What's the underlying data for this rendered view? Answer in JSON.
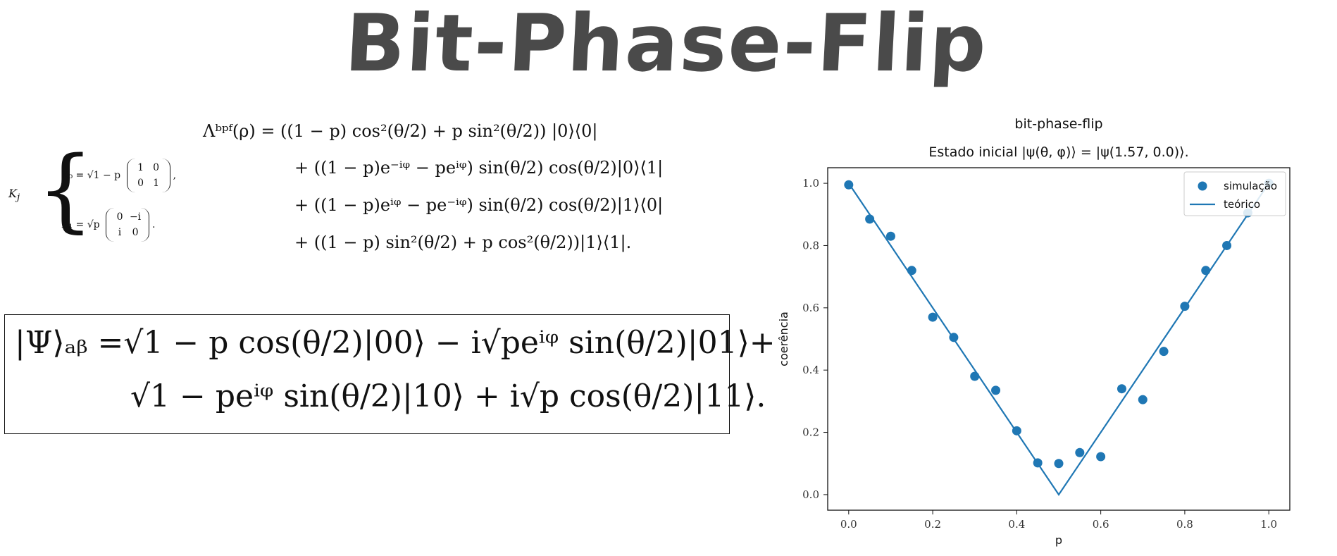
{
  "header": {
    "title": "Bit-Phase-Flip"
  },
  "kraus": {
    "label": "K",
    "sub": "j",
    "k0_lhs": "K₀ = √1 − p",
    "k0_matrix": [
      [
        "1",
        "0"
      ],
      [
        "0",
        "1"
      ]
    ],
    "k0_tail": ",",
    "k1_lhs": "K₁ = √p",
    "k1_matrix": [
      [
        "0",
        "−i"
      ],
      [
        "i",
        "0"
      ]
    ],
    "k1_tail": "."
  },
  "channel": {
    "line1": "Λᵇᵖᶠ(ρ) = ((1 − p) cos²(θ/2) + p sin²(θ/2)) |0⟩⟨0|",
    "line2": "+ ((1 − p)e⁻ⁱᵠ − peⁱᵠ) sin(θ/2) cos(θ/2)|0⟩⟨1|",
    "line3": "+ ((1 − p)eⁱᵠ − pe⁻ⁱᵠ) sin(θ/2) cos(θ/2)|1⟩⟨0|",
    "line4": "+ ((1 − p) sin²(θ/2) + p cos²(θ/2))|1⟩⟨1|."
  },
  "state": {
    "line1": "|Ψ⟩ₐᵦ =√1 − p cos(θ/2)|00⟩ − i√peⁱᵠ sin(θ/2)|01⟩+",
    "line2": "√1 − peⁱᵠ sin(θ/2)|10⟩ + i√p cos(θ/2)|11⟩."
  },
  "chart_data": {
    "type": "scatter",
    "title": "bit-phase-flip",
    "subtitle": "Estado inicial |ψ(θ, φ)⟩ = |ψ(1.57, 0.0)⟩.",
    "xlabel": "p",
    "ylabel": "coerência",
    "xlim": [
      -0.05,
      1.05
    ],
    "ylim": [
      -0.05,
      1.05
    ],
    "xticks": [
      "0.0",
      "0.2",
      "0.4",
      "0.6",
      "0.8",
      "1.0"
    ],
    "yticks": [
      "0.0",
      "0.2",
      "0.4",
      "0.6",
      "0.8",
      "1.0"
    ],
    "grid": false,
    "legend": "top-right",
    "color": "#1f77b4",
    "series": [
      {
        "name": "simulação",
        "kind": "scatter",
        "x": [
          0.0,
          0.05,
          0.1,
          0.15,
          0.2,
          0.25,
          0.3,
          0.35,
          0.4,
          0.45,
          0.5,
          0.55,
          0.6,
          0.65,
          0.7,
          0.75,
          0.8,
          0.85,
          0.9,
          0.95,
          1.0
        ],
        "y": [
          0.995,
          0.885,
          0.83,
          0.72,
          0.57,
          0.505,
          0.38,
          0.335,
          0.205,
          0.102,
          0.1,
          0.135,
          0.122,
          0.34,
          0.305,
          0.46,
          0.605,
          0.72,
          0.8,
          0.905,
          1.0
        ]
      },
      {
        "name": "teórico",
        "kind": "line",
        "x": [
          0.0,
          0.5,
          1.0
        ],
        "y": [
          1.0,
          0.0,
          1.0
        ]
      }
    ]
  }
}
